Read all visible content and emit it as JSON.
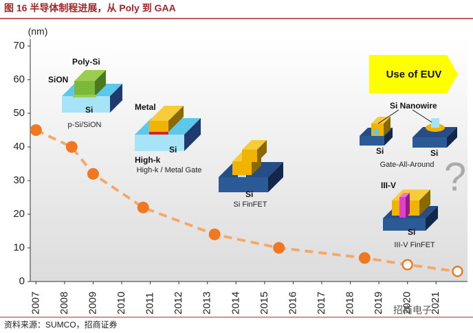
{
  "header": {
    "title": "图 16 半导体制程进展，从 Poly 到 GAA"
  },
  "chart_data": {
    "type": "line",
    "y_label": "(nm)",
    "x": [
      2007,
      2008.25,
      2009,
      2010.75,
      2013.25,
      2015.5,
      2018.5,
      2020,
      2021.75
    ],
    "values": [
      45,
      40,
      32,
      22,
      14,
      10,
      7,
      5,
      3
    ],
    "hollow": [
      false,
      false,
      false,
      false,
      false,
      false,
      false,
      true,
      true
    ],
    "color": "#f5a86a",
    "marker_color": "#f07820",
    "dashed": true,
    "xlim": [
      2006.8,
      2022.1
    ],
    "xticks": [
      2007,
      2008,
      2009,
      2010,
      2011,
      2012,
      2013,
      2014,
      2015,
      2016,
      2017,
      2018,
      2019,
      2020,
      2021
    ],
    "ylim": [
      0,
      70
    ],
    "yticks": [
      0,
      10,
      20,
      30,
      40,
      50,
      60,
      70
    ]
  },
  "illustrations": {
    "p_si": {
      "gate": "Poly-Si",
      "oxide": "SiON",
      "substrate": "Si",
      "caption": "p-Si/SiON"
    },
    "hkmg": {
      "gate": "Metal",
      "dielectric": "High-k",
      "substrate": "Si",
      "caption": "High-k / Metal Gate"
    },
    "finfet": {
      "substrate": "Si",
      "caption": "Si FinFET"
    },
    "euv": "Use of EUV",
    "gaa": {
      "wire": "Si Nanowire",
      "substrate_1": "Si",
      "substrate_2": "Si",
      "caption": "Gate-All-Around"
    },
    "iii_v": {
      "fin": "III-V",
      "substrate": "Si",
      "caption": "III-V FinFET"
    },
    "unknown": "?"
  },
  "footer": {
    "source": "资料来源：SUMCO，招商证券",
    "watermark": "招商电子"
  }
}
